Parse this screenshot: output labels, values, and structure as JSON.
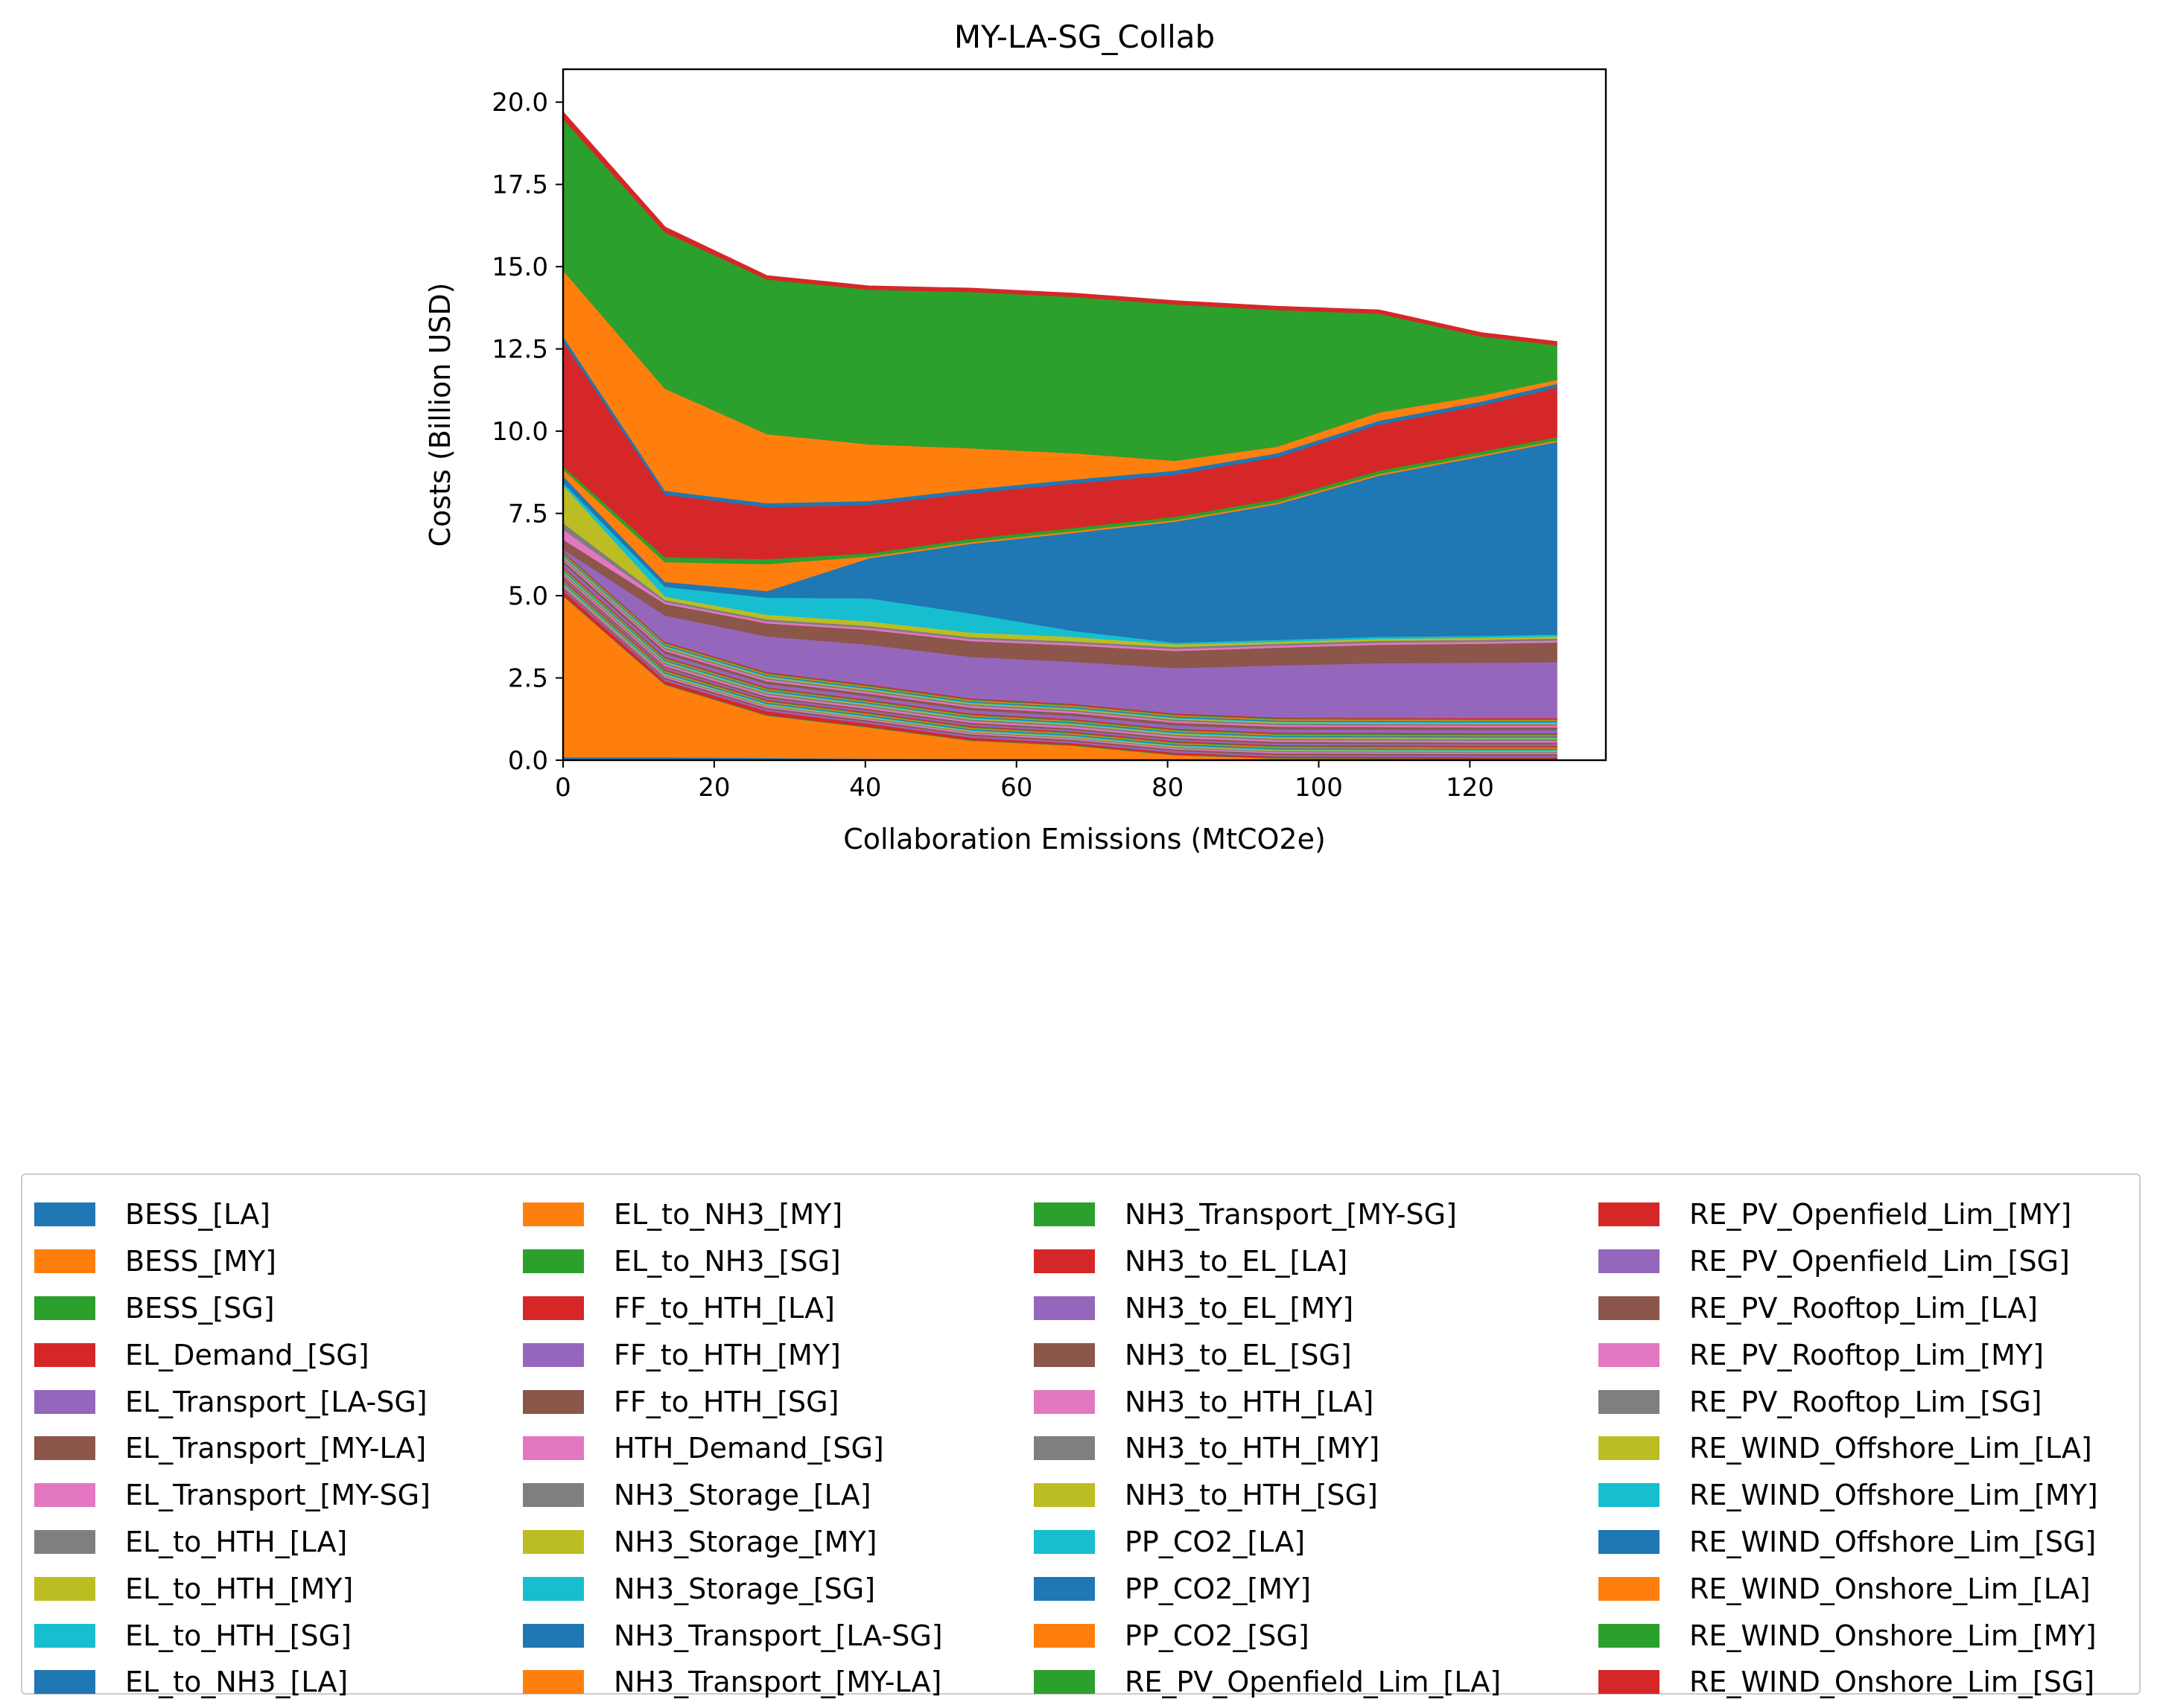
{
  "chart_data": {
    "type": "area",
    "stacked": true,
    "title": "MY-LA-SG_Collab",
    "xlabel": "Collaboration Emissions (MtCO2e)",
    "ylabel": "Costs (Billion USD)",
    "xlim": [
      0,
      138
    ],
    "ylim": [
      0,
      21
    ],
    "xticks": [
      0,
      20,
      40,
      60,
      80,
      100,
      120
    ],
    "yticks": [
      0.0,
      2.5,
      5.0,
      7.5,
      10.0,
      12.5,
      15.0,
      17.5,
      20.0
    ],
    "ytick_labels": [
      "0.0",
      "2.5",
      "5.0",
      "7.5",
      "10.0",
      "12.5",
      "15.0",
      "17.5",
      "20.0"
    ],
    "grid": false,
    "legend_position": "bottom",
    "legend_columns": 4,
    "x": [
      0,
      13.5,
      27,
      40.5,
      54,
      67.5,
      81,
      94.5,
      108,
      121.5,
      131.5
    ],
    "series": [
      {
        "name": "BESS_[LA]",
        "color": "#1f77b4",
        "values": [
          0.1,
          0.1,
          0.08,
          0.06,
          0.05,
          0.05,
          0.04,
          0.03,
          0.03,
          0.03,
          0.03
        ]
      },
      {
        "name": "BESS_[MY]",
        "color": "#ff7f0e",
        "values": [
          4.9,
          2.2,
          1.28,
          0.94,
          0.55,
          0.4,
          0.12,
          0.03,
          0.02,
          0.01,
          0.01
        ]
      },
      {
        "name": "BESS_[SG]",
        "color": "#2ca02c",
        "values": [
          0.02,
          0.02,
          0.02,
          0.02,
          0.02,
          0.02,
          0.02,
          0.02,
          0.02,
          0.02,
          0.02
        ]
      },
      {
        "name": "EL_Demand_[SG]",
        "color": "#d62728",
        "values": [
          0.15,
          0.1,
          0.12,
          0.1,
          0.08,
          0.06,
          0.06,
          0.04,
          0.04,
          0.04,
          0.04
        ]
      },
      {
        "name": "EL_Transport_[LA-SG]",
        "color": "#9467bd",
        "values": [
          0.05,
          0.05,
          0.05,
          0.05,
          0.05,
          0.05,
          0.05,
          0.05,
          0.05,
          0.05,
          0.05
        ]
      },
      {
        "name": "EL_Transport_[MY-LA]",
        "color": "#8c564b",
        "values": [
          0.05,
          0.05,
          0.05,
          0.05,
          0.05,
          0.05,
          0.05,
          0.05,
          0.05,
          0.05,
          0.05
        ]
      },
      {
        "name": "EL_Transport_[MY-SG]",
        "color": "#e377c2",
        "values": [
          0.04,
          0.04,
          0.04,
          0.04,
          0.04,
          0.04,
          0.04,
          0.04,
          0.04,
          0.04,
          0.04
        ]
      },
      {
        "name": "EL_to_HTH_[LA]",
        "color": "#7f7f7f",
        "values": [
          0.03,
          0.03,
          0.03,
          0.03,
          0.03,
          0.03,
          0.03,
          0.03,
          0.03,
          0.03,
          0.03
        ]
      },
      {
        "name": "EL_to_HTH_[MY]",
        "color": "#bcbd22",
        "values": [
          0.03,
          0.03,
          0.03,
          0.03,
          0.03,
          0.03,
          0.03,
          0.03,
          0.03,
          0.03,
          0.03
        ]
      },
      {
        "name": "EL_to_HTH_[SG]",
        "color": "#17becf",
        "values": [
          0.03,
          0.03,
          0.03,
          0.03,
          0.03,
          0.03,
          0.03,
          0.03,
          0.03,
          0.03,
          0.03
        ]
      },
      {
        "name": "EL_to_NH3_[LA]",
        "color": "#1f77b4",
        "values": [
          0.03,
          0.03,
          0.03,
          0.03,
          0.03,
          0.03,
          0.03,
          0.03,
          0.03,
          0.03,
          0.03
        ]
      },
      {
        "name": "EL_to_NH3_[MY]",
        "color": "#ff7f0e",
        "values": [
          0.03,
          0.03,
          0.03,
          0.03,
          0.03,
          0.03,
          0.03,
          0.03,
          0.03,
          0.03,
          0.03
        ]
      },
      {
        "name": "EL_to_NH3_[SG]",
        "color": "#2ca02c",
        "values": [
          0.03,
          0.03,
          0.03,
          0.03,
          0.03,
          0.03,
          0.03,
          0.03,
          0.03,
          0.03,
          0.03
        ]
      },
      {
        "name": "FF_to_HTH_[LA]",
        "color": "#d62728",
        "values": [
          0.03,
          0.03,
          0.03,
          0.03,
          0.03,
          0.03,
          0.03,
          0.03,
          0.03,
          0.03,
          0.03
        ]
      },
      {
        "name": "FF_to_HTH_[MY]",
        "color": "#9467bd",
        "values": [
          0.05,
          0.05,
          0.05,
          0.05,
          0.05,
          0.05,
          0.05,
          0.05,
          0.05,
          0.05,
          0.05
        ]
      },
      {
        "name": "FF_to_HTH_[SG]",
        "color": "#8c564b",
        "values": [
          0.05,
          0.05,
          0.05,
          0.05,
          0.05,
          0.05,
          0.05,
          0.05,
          0.05,
          0.05,
          0.05
        ]
      },
      {
        "name": "HTH_Demand_[SG]",
        "color": "#e377c2",
        "values": [
          0.05,
          0.05,
          0.05,
          0.05,
          0.05,
          0.05,
          0.05,
          0.05,
          0.05,
          0.05,
          0.05
        ]
      },
      {
        "name": "NH3_Storage_[LA]",
        "color": "#7f7f7f",
        "values": [
          0.05,
          0.05,
          0.05,
          0.05,
          0.05,
          0.05,
          0.05,
          0.05,
          0.05,
          0.05,
          0.05
        ]
      },
      {
        "name": "NH3_Storage_[MY]",
        "color": "#bcbd22",
        "values": [
          0.03,
          0.03,
          0.03,
          0.03,
          0.03,
          0.03,
          0.03,
          0.03,
          0.03,
          0.03,
          0.03
        ]
      },
      {
        "name": "NH3_Storage_[SG]",
        "color": "#17becf",
        "values": [
          0.03,
          0.03,
          0.03,
          0.03,
          0.03,
          0.03,
          0.03,
          0.03,
          0.03,
          0.03,
          0.03
        ]
      },
      {
        "name": "NH3_Transport_[LA-SG]",
        "color": "#1f77b4",
        "values": [
          0.03,
          0.03,
          0.03,
          0.03,
          0.03,
          0.03,
          0.03,
          0.03,
          0.03,
          0.03,
          0.03
        ]
      },
      {
        "name": "NH3_Transport_[MY-LA]",
        "color": "#ff7f0e",
        "values": [
          0.03,
          0.03,
          0.03,
          0.03,
          0.03,
          0.03,
          0.03,
          0.03,
          0.03,
          0.03,
          0.03
        ]
      },
      {
        "name": "NH3_Transport_[MY-SG]",
        "color": "#2ca02c",
        "values": [
          0.03,
          0.03,
          0.03,
          0.03,
          0.03,
          0.03,
          0.03,
          0.03,
          0.03,
          0.03,
          0.03
        ]
      },
      {
        "name": "NH3_to_EL_[LA]",
        "color": "#d62728",
        "values": [
          0.03,
          0.03,
          0.03,
          0.03,
          0.03,
          0.03,
          0.03,
          0.03,
          0.03,
          0.03,
          0.03
        ]
      },
      {
        "name": "NH3_to_EL_[MY]",
        "color": "#9467bd",
        "values": [
          0.1,
          0.1,
          0.1,
          0.1,
          0.1,
          0.1,
          0.1,
          0.1,
          0.1,
          0.1,
          0.1
        ]
      },
      {
        "name": "NH3_to_EL_[SG]",
        "color": "#8c564b",
        "values": [
          0.08,
          0.08,
          0.08,
          0.08,
          0.08,
          0.08,
          0.08,
          0.08,
          0.08,
          0.08,
          0.08
        ]
      },
      {
        "name": "NH3_to_HTH_[LA]",
        "color": "#e377c2",
        "values": [
          0.05,
          0.05,
          0.05,
          0.05,
          0.05,
          0.05,
          0.05,
          0.05,
          0.05,
          0.05,
          0.05
        ]
      },
      {
        "name": "NH3_to_HTH_[MY]",
        "color": "#7f7f7f",
        "values": [
          0.05,
          0.05,
          0.05,
          0.05,
          0.05,
          0.05,
          0.05,
          0.05,
          0.05,
          0.05,
          0.05
        ]
      },
      {
        "name": "NH3_to_HTH_[SG]",
        "color": "#bcbd22",
        "values": [
          0.03,
          0.03,
          0.03,
          0.03,
          0.03,
          0.03,
          0.03,
          0.03,
          0.03,
          0.03,
          0.03
        ]
      },
      {
        "name": "PP_CO2_[LA]",
        "color": "#17becf",
        "values": [
          0.03,
          0.03,
          0.03,
          0.03,
          0.03,
          0.03,
          0.03,
          0.03,
          0.03,
          0.03,
          0.03
        ]
      },
      {
        "name": "PP_CO2_[MY]",
        "color": "#1f77b4",
        "values": [
          0.03,
          0.03,
          0.03,
          0.03,
          0.03,
          0.03,
          0.03,
          0.03,
          0.03,
          0.03,
          0.03
        ]
      },
      {
        "name": "PP_CO2_[SG]",
        "color": "#ff7f0e",
        "values": [
          0.03,
          0.03,
          0.03,
          0.03,
          0.03,
          0.03,
          0.03,
          0.03,
          0.03,
          0.03,
          0.03
        ]
      },
      {
        "name": "RE_PV_Openfield_Lim_[LA]",
        "color": "#2ca02c",
        "values": [
          0.03,
          0.03,
          0.03,
          0.03,
          0.03,
          0.03,
          0.03,
          0.03,
          0.03,
          0.03,
          0.03
        ]
      },
      {
        "name": "RE_PV_Openfield_Lim_[MY]",
        "color": "#d62728",
        "values": [
          0.03,
          0.03,
          0.03,
          0.03,
          0.03,
          0.03,
          0.03,
          0.03,
          0.03,
          0.03,
          0.03
        ]
      },
      {
        "name": "RE_PV_Openfield_Lim_[SG]",
        "color": "#9467bd",
        "values": [
          0.06,
          0.8,
          1.08,
          1.21,
          1.26,
          1.28,
          1.38,
          1.58,
          1.66,
          1.68,
          1.7
        ]
      },
      {
        "name": "RE_PV_Rooftop_Lim_[LA]",
        "color": "#8c564b",
        "values": [
          0.3,
          0.35,
          0.4,
          0.45,
          0.48,
          0.5,
          0.52,
          0.54,
          0.56,
          0.58,
          0.6
        ]
      },
      {
        "name": "RE_PV_Rooftop_Lim_[MY]",
        "color": "#e377c2",
        "values": [
          0.3,
          0.06,
          0.06,
          0.06,
          0.06,
          0.06,
          0.06,
          0.06,
          0.06,
          0.06,
          0.06
        ]
      },
      {
        "name": "RE_PV_Rooftop_Lim_[SG]",
        "color": "#7f7f7f",
        "values": [
          0.2,
          0.06,
          0.06,
          0.06,
          0.06,
          0.06,
          0.06,
          0.06,
          0.06,
          0.06,
          0.06
        ]
      },
      {
        "name": "RE_WIND_Offshore_Lim_[LA]",
        "color": "#bcbd22",
        "values": [
          1.15,
          0.1,
          0.14,
          0.14,
          0.14,
          0.14,
          0.08,
          0.06,
          0.06,
          0.06,
          0.06
        ]
      },
      {
        "name": "RE_WIND_Offshore_Lim_[MY]",
        "color": "#17becf",
        "values": [
          0.08,
          0.3,
          0.52,
          0.7,
          0.58,
          0.18,
          0.05,
          0.06,
          0.06,
          0.06,
          0.06
        ]
      },
      {
        "name": "RE_WIND_Offshore_Lim_[SG]",
        "color": "#1f77b4",
        "values": [
          0.2,
          0.15,
          0.2,
          1.22,
          2.12,
          2.98,
          3.68,
          4.12,
          4.9,
          5.45,
          5.85
        ]
      },
      {
        "name": "RE_WIND_Onshore_Lim_[LA]",
        "color": "#ff7f0e",
        "values": [
          0.2,
          0.6,
          0.82,
          0.05,
          0.05,
          0.05,
          0.05,
          0.05,
          0.05,
          0.05,
          0.05
        ]
      },
      {
        "name": "RE_WIND_Onshore_Lim_[MY]",
        "color": "#2ca02c",
        "values": [
          0.1,
          0.15,
          0.15,
          0.1,
          0.1,
          0.1,
          0.1,
          0.1,
          0.1,
          0.1,
          0.1
        ]
      },
      {
        "name": "RE_WIND_Onshore_Lim_[SG]",
        "color": "#d62728",
        "values": [
          3.8,
          1.9,
          1.58,
          1.47,
          1.38,
          1.35,
          1.28,
          1.28,
          1.4,
          1.4,
          1.5
        ]
      },
      {
        "name": "BESS_[LA]",
        "color": "#1f77b4",
        "values": [
          0.15,
          0.12,
          0.12,
          0.12,
          0.12,
          0.12,
          0.12,
          0.12,
          0.12,
          0.12,
          0.12
        ]
      },
      {
        "name": "BESS_[MY]",
        "color": "#ff7f0e",
        "values": [
          2.0,
          3.1,
          2.1,
          1.72,
          1.25,
          0.8,
          0.3,
          0.2,
          0.25,
          0.18,
          0.12
        ]
      },
      {
        "name": "BESS_[SG]",
        "color": "#2ca02c",
        "values": [
          4.6,
          4.75,
          4.7,
          4.7,
          4.75,
          4.75,
          4.75,
          4.15,
          3.0,
          1.8,
          1.05
        ]
      },
      {
        "name": "EL_Demand_[SG]",
        "color": "#d62728",
        "values": [
          0.2,
          0.15,
          0.1,
          0.1,
          0.1,
          0.1,
          0.1,
          0.1,
          0.1,
          0.1,
          0.1
        ]
      }
    ],
    "legend": [
      "BESS_[LA]",
      "BESS_[MY]",
      "BESS_[SG]",
      "EL_Demand_[SG]",
      "EL_Transport_[LA-SG]",
      "EL_Transport_[MY-LA]",
      "EL_Transport_[MY-SG]",
      "EL_to_HTH_[LA]",
      "EL_to_HTH_[MY]",
      "EL_to_HTH_[SG]",
      "EL_to_NH3_[LA]",
      "EL_to_NH3_[MY]",
      "EL_to_NH3_[SG]",
      "FF_to_HTH_[LA]",
      "FF_to_HTH_[MY]",
      "FF_to_HTH_[SG]",
      "HTH_Demand_[SG]",
      "NH3_Storage_[LA]",
      "NH3_Storage_[MY]",
      "NH3_Storage_[SG]",
      "NH3_Transport_[LA-SG]",
      "NH3_Transport_[MY-LA]",
      "NH3_Transport_[MY-SG]",
      "NH3_to_EL_[LA]",
      "NH3_to_EL_[MY]",
      "NH3_to_EL_[SG]",
      "NH3_to_HTH_[LA]",
      "NH3_to_HTH_[MY]",
      "NH3_to_HTH_[SG]",
      "PP_CO2_[LA]",
      "PP_CO2_[MY]",
      "PP_CO2_[SG]",
      "RE_PV_Openfield_Lim_[LA]",
      "RE_PV_Openfield_Lim_[MY]",
      "RE_PV_Openfield_Lim_[SG]",
      "RE_PV_Rooftop_Lim_[LA]",
      "RE_PV_Rooftop_Lim_[MY]",
      "RE_PV_Rooftop_Lim_[SG]",
      "RE_WIND_Offshore_Lim_[LA]",
      "RE_WIND_Offshore_Lim_[MY]",
      "RE_WIND_Offshore_Lim_[SG]",
      "RE_WIND_Onshore_Lim_[LA]",
      "RE_WIND_Onshore_Lim_[MY]",
      "RE_WIND_Onshore_Lim_[SG]"
    ],
    "legend_colors": [
      "#1f77b4",
      "#ff7f0e",
      "#2ca02c",
      "#d62728",
      "#9467bd",
      "#8c564b",
      "#e377c2",
      "#7f7f7f",
      "#bcbd22",
      "#17becf",
      "#1f77b4",
      "#ff7f0e",
      "#2ca02c",
      "#d62728",
      "#9467bd",
      "#8c564b",
      "#e377c2",
      "#7f7f7f",
      "#bcbd22",
      "#17becf",
      "#1f77b4",
      "#ff7f0e",
      "#2ca02c",
      "#d62728",
      "#9467bd",
      "#8c564b",
      "#e377c2",
      "#7f7f7f",
      "#bcbd22",
      "#17becf",
      "#1f77b4",
      "#ff7f0e",
      "#2ca02c",
      "#d62728",
      "#9467bd",
      "#8c564b",
      "#e377c2",
      "#7f7f7f",
      "#bcbd22",
      "#17becf",
      "#1f77b4",
      "#ff7f0e",
      "#2ca02c",
      "#d62728"
    ]
  }
}
